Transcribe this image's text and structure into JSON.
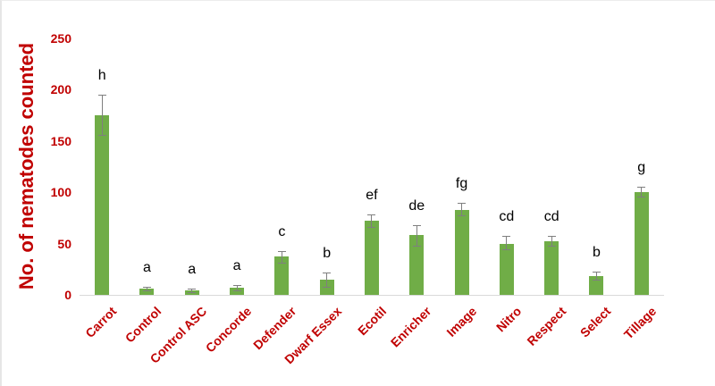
{
  "chart_data": {
    "type": "bar",
    "title": "",
    "xlabel": "",
    "ylabel": "No. of nematodes counted",
    "ylim": [
      0,
      250
    ],
    "yticks": [
      0,
      50,
      100,
      150,
      200,
      250
    ],
    "grid": false,
    "legend": null,
    "bar_color": "#70ad47",
    "label_color": "#c00000",
    "categories": [
      "Carrot",
      "Control",
      "Control ASC",
      "Concorde",
      "Defender",
      "Dwarf Essex",
      "Ecotil",
      "Enricher",
      "Image",
      "Nitro",
      "Respect",
      "Select",
      "Tillage"
    ],
    "values": [
      175,
      6,
      4.5,
      7,
      37,
      15,
      72,
      58,
      83,
      50,
      52,
      18,
      100
    ],
    "error_low": [
      156,
      4,
      3,
      4,
      31,
      8,
      66,
      48,
      77,
      44,
      48,
      15,
      96
    ],
    "error_high": [
      195,
      8,
      6,
      10,
      43,
      22,
      78,
      68,
      90,
      57,
      57,
      23,
      105
    ],
    "significance_letters": [
      "h",
      "a",
      "a",
      "a",
      "c",
      "b",
      "ef",
      "de",
      "fg",
      "cd",
      "cd",
      "b",
      "g"
    ]
  }
}
